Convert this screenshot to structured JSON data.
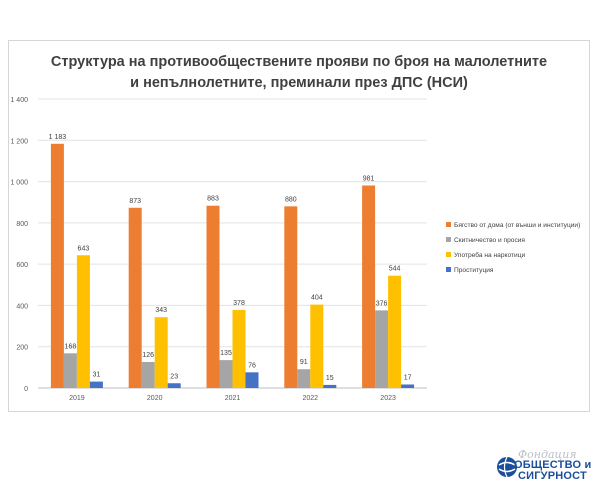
{
  "chart_data": {
    "type": "bar",
    "title_lines": [
      "Структура на противообществените прояви по броя на малолетните",
      "и непълнолетните, преминали през ДПС  (НСИ)"
    ],
    "categories": [
      "2019",
      "2020",
      "2021",
      "2022",
      "2023"
    ],
    "series": [
      {
        "name": "Бягство от дома (от външи и институции)",
        "color": "#ED7D31",
        "values": [
          1183,
          873,
          883,
          880,
          981
        ]
      },
      {
        "name": "Скитничество и просия",
        "color": "#A5A5A5",
        "values": [
          168,
          126,
          135,
          91,
          376
        ]
      },
      {
        "name": "Употреба на наркотици",
        "color": "#FFC000",
        "values": [
          643,
          343,
          378,
          404,
          544
        ]
      },
      {
        "name": "Проституция",
        "color": "#4472C4",
        "values": [
          31,
          23,
          76,
          15,
          17
        ]
      }
    ],
    "value_labels": [
      [
        "1 183",
        "873",
        "883",
        "880",
        "981"
      ],
      [
        "168",
        "126",
        "135",
        "91",
        "376"
      ],
      [
        "643",
        "343",
        "378",
        "404",
        "544"
      ],
      [
        "31",
        "23",
        "76",
        "15",
        "17"
      ]
    ],
    "ylim": [
      0,
      1400
    ],
    "yticks": [
      0,
      200,
      400,
      600,
      800,
      1000,
      1200,
      1400
    ],
    "ytick_labels": [
      "0",
      "200",
      "400",
      "600",
      "800",
      "1 000",
      "1 200",
      "1 400"
    ],
    "grid": true,
    "legend_position": "right"
  },
  "logo": {
    "script_text": "Фондация",
    "line1": "ОБЩЕСТВО и",
    "line2": "СИГУРНОСТ",
    "brand_color": "#1B4F9A"
  }
}
